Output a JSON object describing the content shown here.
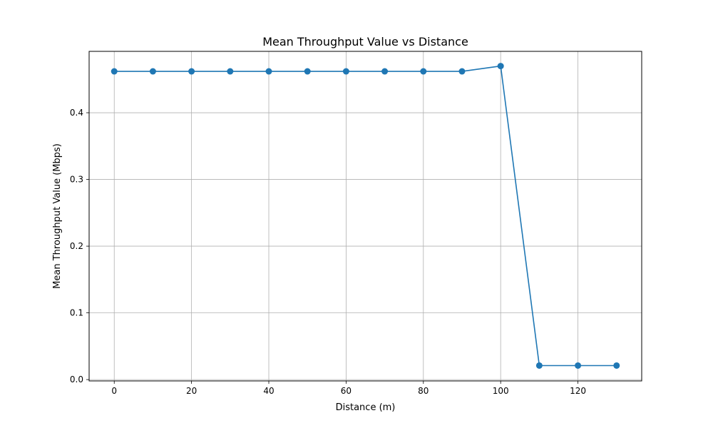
{
  "chart_data": {
    "type": "line",
    "title": "Mean Throughput Value vs Distance",
    "xlabel": "Distance (m)",
    "ylabel": "Mean Throughput Value (Mbps)",
    "x": [
      0,
      10,
      20,
      30,
      40,
      50,
      60,
      70,
      80,
      90,
      100,
      110,
      120,
      130
    ],
    "series": [
      {
        "values": [
          0.462,
          0.462,
          0.462,
          0.462,
          0.462,
          0.462,
          0.462,
          0.462,
          0.462,
          0.462,
          0.47,
          0.021,
          0.021,
          0.021
        ],
        "color": "#1f77b4"
      }
    ],
    "xlim": [
      -6.5,
      136.5
    ],
    "ylim": [
      -0.002,
      0.492
    ],
    "xticks": [
      0,
      20,
      40,
      60,
      80,
      100,
      120
    ],
    "yticks": [
      0.0,
      0.1,
      0.2,
      0.3,
      0.4
    ],
    "ytick_labels": [
      "0.0",
      "0.1",
      "0.2",
      "0.3",
      "0.4"
    ],
    "grid": true,
    "legend": "none"
  }
}
